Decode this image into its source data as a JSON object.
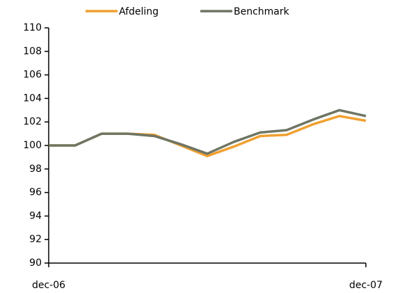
{
  "chart_data": {
    "type": "line",
    "categories": [
      "dec-06",
      null,
      null,
      null,
      null,
      null,
      null,
      null,
      null,
      null,
      null,
      null,
      "dec-07"
    ],
    "series": [
      {
        "name": "Afdeling",
        "color": "#f0a030",
        "values": [
          100,
          100,
          101,
          101,
          100.9,
          100,
          99.1,
          99.9,
          100.8,
          100.9,
          101.8,
          102.5,
          102.1
        ]
      },
      {
        "name": "Benchmark",
        "color": "#6e7564",
        "values": [
          100,
          100,
          101,
          101,
          100.8,
          100.1,
          99.3,
          100.3,
          101.1,
          101.3,
          102.2,
          103.0,
          102.5
        ]
      }
    ],
    "ylim": [
      90,
      110
    ],
    "yticks": [
      90,
      92,
      94,
      96,
      98,
      100,
      102,
      104,
      106,
      108,
      110
    ],
    "legend": "top"
  }
}
